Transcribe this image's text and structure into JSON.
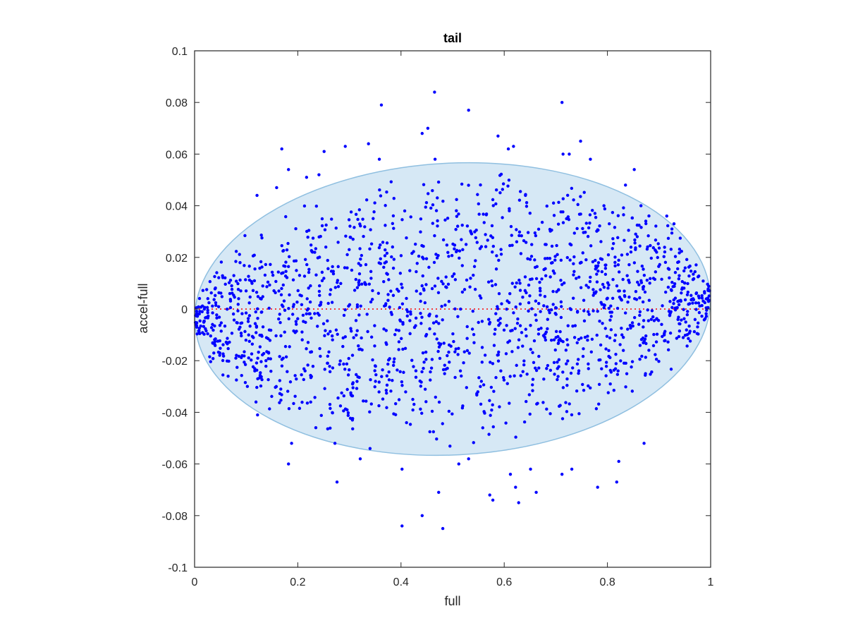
{
  "chart_data": {
    "type": "scatter",
    "title": "tail",
    "xlabel": "full",
    "ylabel": "accel-full",
    "xlim": [
      0,
      1
    ],
    "ylim": [
      -0.1,
      0.1
    ],
    "xticks": [
      0,
      0.2,
      0.4,
      0.6,
      0.8,
      1
    ],
    "xtick_labels": [
      "0",
      "0.2",
      "0.4",
      "0.6",
      "0.8",
      "1"
    ],
    "yticks": [
      -0.1,
      -0.08,
      -0.06,
      -0.04,
      -0.02,
      0,
      0.02,
      0.04,
      0.06,
      0.08,
      0.1
    ],
    "ytick_labels": [
      "-0.1",
      "-0.08",
      "-0.06",
      "-0.04",
      "-0.02",
      "0",
      "0.02",
      "0.04",
      "0.06",
      "0.08",
      "0.1"
    ],
    "grid": false,
    "ellipse": {
      "cx": 0.5,
      "cy": 0,
      "rx": 0.5,
      "ry": 0.0565,
      "rotation_deg": -3,
      "fill": "#d6e8f5",
      "stroke": "#8fbfe0"
    },
    "zero_line": {
      "y": 0,
      "color": "#ff0000",
      "style": "dotted"
    },
    "series": [
      {
        "color": "#0000ff",
        "points": [
          [
            0.465,
            0.084
          ],
          [
            0.362,
            0.079
          ],
          [
            0.531,
            0.077
          ],
          [
            0.712,
            0.08
          ],
          [
            0.452,
            0.07
          ],
          [
            0.441,
            0.068
          ],
          [
            0.588,
            0.067
          ],
          [
            0.292,
            0.063
          ],
          [
            0.337,
            0.064
          ],
          [
            0.251,
            0.061
          ],
          [
            0.169,
            0.062
          ],
          [
            0.608,
            0.062
          ],
          [
            0.618,
            0.063
          ],
          [
            0.748,
            0.065
          ],
          [
            0.714,
            0.06
          ],
          [
            0.726,
            0.06
          ],
          [
            0.767,
            0.058
          ],
          [
            0.358,
            0.058
          ],
          [
            0.466,
            0.058
          ],
          [
            0.182,
            0.054
          ],
          [
            0.852,
            0.054
          ],
          [
            0.217,
            0.051
          ],
          [
            0.241,
            0.052
          ],
          [
            0.121,
            0.044
          ],
          [
            0.159,
            0.047
          ],
          [
            0.835,
            0.048
          ],
          [
            0.865,
            0.04
          ],
          [
            0.915,
            0.036
          ],
          [
            0.925,
            0.031
          ],
          [
            0.929,
            0.033
          ],
          [
            0.188,
            -0.052
          ],
          [
            0.182,
            -0.06
          ],
          [
            0.122,
            -0.041
          ],
          [
            0.119,
            -0.036
          ],
          [
            0.272,
            -0.052
          ],
          [
            0.276,
            -0.067
          ],
          [
            0.321,
            -0.058
          ],
          [
            0.34,
            -0.054
          ],
          [
            0.402,
            -0.062
          ],
          [
            0.402,
            -0.084
          ],
          [
            0.441,
            -0.08
          ],
          [
            0.481,
            -0.085
          ],
          [
            0.473,
            -0.071
          ],
          [
            0.512,
            -0.06
          ],
          [
            0.531,
            -0.058
          ],
          [
            0.572,
            -0.072
          ],
          [
            0.578,
            -0.074
          ],
          [
            0.612,
            -0.064
          ],
          [
            0.622,
            -0.069
          ],
          [
            0.628,
            -0.075
          ],
          [
            0.651,
            -0.062
          ],
          [
            0.662,
            -0.071
          ],
          [
            0.712,
            -0.064
          ],
          [
            0.731,
            -0.062
          ],
          [
            0.781,
            -0.069
          ],
          [
            0.818,
            -0.067
          ],
          [
            0.822,
            -0.059
          ],
          [
            0.871,
            -0.052
          ],
          [
            0.065,
            -0.026
          ]
        ]
      }
    ]
  }
}
